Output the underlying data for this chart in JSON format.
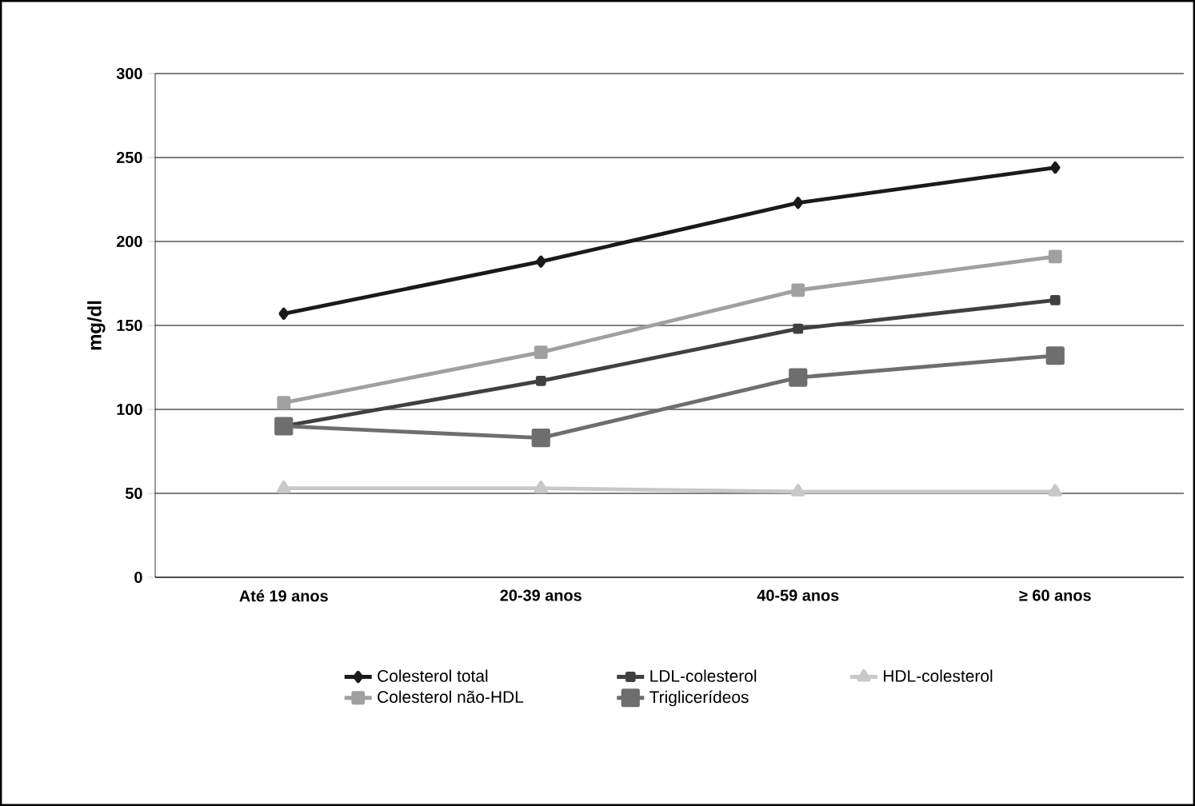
{
  "chart_data": {
    "type": "line",
    "ylabel": "mg/dl",
    "categories": [
      "Até 19 anos",
      "20-39 anos",
      "40-59 anos",
      "≥ 60 anos"
    ],
    "series": [
      {
        "name": "Colesterol total",
        "color": "#1a1a1a",
        "marker": "diamond",
        "values": [
          157,
          188,
          223,
          244
        ]
      },
      {
        "name": "LDL-colesterol",
        "color": "#404040",
        "marker": "square",
        "values": [
          90,
          117,
          148,
          165
        ]
      },
      {
        "name": "HDL-colesterol",
        "color": "#c8c8c8",
        "marker": "triangle",
        "values": [
          53,
          53,
          51,
          51
        ]
      },
      {
        "name": "Colesterol não-HDL",
        "color": "#a0a0a0",
        "marker": "square",
        "values": [
          104,
          134,
          171,
          191
        ]
      },
      {
        "name": "Triglicerídeos",
        "color": "#6e6e6e",
        "marker": "square",
        "values": [
          90,
          83,
          119,
          132
        ]
      }
    ],
    "ylim": [
      0,
      300
    ],
    "yticks": [
      0,
      50,
      100,
      150,
      200,
      250,
      300
    ],
    "grid": "y",
    "legend": "bottom",
    "line_style": "solid"
  }
}
